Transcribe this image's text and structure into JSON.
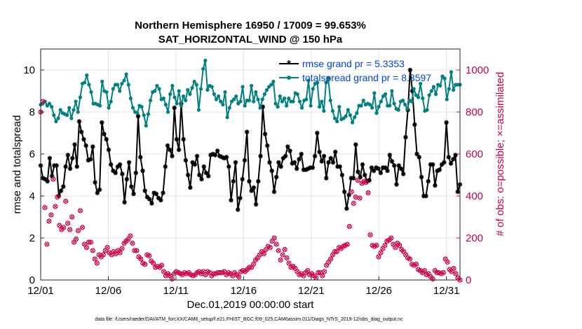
{
  "chart_data": {
    "type": "line",
    "title": "Northern Hemisphere 16950 / 17009 = 99.653%",
    "subtitle": "SAT_HORIZONTAL_WIND @ 150 hPa",
    "xlabel": "Dec.01,2019 00:00:00 start",
    "ylabel_left": "rmse and totalspread",
    "ylabel_right": "# of obs: o=possible; ×=assimilated",
    "xlim": [
      0,
      31
    ],
    "ylim_left": [
      0,
      11
    ],
    "ylim_right": [
      0,
      1100
    ],
    "x_ticks": [
      0,
      5,
      10,
      15,
      20,
      25,
      30
    ],
    "x_tick_labels": [
      "12/01",
      "12/06",
      "12/11",
      "12/16",
      "12/21",
      "12/26",
      "12/31"
    ],
    "y_left_ticks": [
      "0",
      "2",
      "4",
      "6",
      "8",
      "10"
    ],
    "y_right_ticks": [
      "0",
      "200",
      "400",
      "600",
      "800",
      "1000"
    ],
    "grid": true,
    "legend_position": "top-right",
    "footer": "data file: /Users/raeder/DAI/ATM_forcXX/CAM6_setup/f.e21.FHIST_BGC.f09_025.CAM6assim.011/Diags_NTrS_2019-12/obs_diag_output.nc",
    "series": [
      {
        "name": "rmse grand pr = 5.3353",
        "axis": "left",
        "color": "#000000",
        "values": [
          5.45,
          4.85,
          4.8,
          4.7,
          5.8,
          4.95,
          5.45,
          5.45,
          4.0,
          4.25,
          4.45,
          5.4,
          5.95,
          5.3,
          5.8,
          6.45,
          5.4,
          7.55,
          7.05,
          6.7,
          6.4,
          5.7,
          5.75,
          6.35,
          4.65,
          4.15,
          4.3,
          7.5,
          6.95,
          6.7,
          6.2,
          5.5,
          5.2,
          5.1,
          5.4,
          5.5,
          5.05,
          3.7,
          4.8,
          5.6,
          4.45,
          4.1,
          5.1,
          7.8,
          5.85,
          5.2,
          4.25,
          3.95,
          3.85,
          3.65,
          4.15,
          4.1,
          3.9,
          3.8,
          4.15,
          5.4,
          6.4,
          6.2,
          5.9,
          8.2,
          6.7,
          6.2,
          8.4,
          6.7,
          5.7,
          5.0,
          4.4,
          5.6,
          5.5,
          5.9,
          5.0,
          4.8,
          5.4,
          5.1,
          4.95,
          5.95,
          6.0,
          5.95,
          6.15,
          5.9,
          5.85,
          5.8,
          5.85,
          5.4,
          3.8,
          4.7,
          5.6,
          3.35,
          3.9,
          4.8,
          5.7,
          7.05,
          4.7,
          4.25,
          4.4,
          3.6,
          4.7,
          5.9,
          8.25,
          6.95,
          6.4,
          5.6,
          5.2,
          4.2,
          4.9,
          5.6,
          5.4,
          5.8,
          5.9,
          6.35,
          6.15,
          5.55,
          5.6,
          5.3,
          5.75,
          6.0,
          5.25,
          5.25,
          5.3,
          5.35,
          5.35,
          5.9,
          7.0,
          6.1,
          5.65,
          5.9,
          4.85,
          5.6,
          5.8,
          5.6,
          6.1,
          5.4,
          5.4,
          5.0,
          4.2,
          3.4,
          4.05,
          4.85,
          4.85,
          6.45,
          5.15,
          4.9,
          5.5,
          5.0,
          4.7,
          4.75,
          5.35,
          5.2,
          5.35,
          5.3,
          5.1,
          5.35,
          5.35,
          5.2,
          5.95,
          5.65,
          5.45,
          4.55,
          5.45,
          5.3,
          5.05,
          6.8,
          8.1,
          10.0,
          9.0,
          7.4,
          6.0,
          5.85,
          4.9,
          4.0,
          4.0,
          4.7,
          5.5,
          5.5,
          4.5,
          5.2,
          5.25,
          5.5,
          5.6,
          7.5,
          5.85,
          5.55,
          5.75,
          5.95,
          4.2,
          4.55
        ],
        "markers": "asterisk"
      },
      {
        "name": "totalspread grand pr = 8.3597",
        "axis": "left",
        "color": "#008080",
        "values": [
          8.35,
          8.4,
          8.5,
          8.3,
          8.4,
          8.25,
          7.85,
          7.55,
          7.7,
          8.1,
          7.95,
          7.9,
          7.85,
          8.2,
          7.7,
          8.1,
          8.5,
          8.0,
          8.7,
          9.35,
          9.4,
          9.75,
          9.3,
          8.95,
          8.4,
          8.4,
          8.35,
          8.3,
          9.45,
          9.0,
          8.95,
          8.2,
          8.5,
          9.1,
          9.3,
          9.3,
          9.0,
          9.35,
          9.5,
          9.8,
          9.3,
          8.65,
          8.2,
          8.0,
          7.95,
          8.3,
          8.25,
          7.85,
          7.35,
          7.9,
          8.55,
          8.95,
          9.0,
          9.25,
          9.1,
          8.6,
          8.65,
          8.35,
          8.0,
          8.85,
          9.25,
          8.7,
          8.4,
          9.0,
          8.3,
          8.75,
          8.55,
          9.05,
          8.85,
          9.15,
          9.45,
          9.3,
          8.1,
          9.1,
          10.05,
          10.45,
          9.05,
          9.25,
          9.2,
          8.85,
          8.6,
          8.75,
          8.5,
          8.35,
          8.95,
          7.75,
          8.2,
          8.5,
          8.6,
          8.75,
          8.4,
          8.5,
          9.2,
          8.3,
          8.55,
          8.55,
          9.25,
          8.5,
          8.95,
          8.6,
          8.2,
          8.6,
          8.85,
          9.05,
          9.2,
          9.3,
          9.45,
          8.4,
          8.25,
          8.75,
          8.5,
          8.65,
          8.3,
          8.65,
          8.5,
          8.5,
          8.9,
          8.85,
          8.5,
          8.2,
          8.55,
          8.6,
          9.5,
          8.3,
          9.1,
          9.35,
          9.4,
          8.25,
          8.5,
          8.05,
          9.4,
          9.6,
          8.55,
          8.05,
          7.7,
          7.55,
          8.25,
          7.65,
          7.7,
          7.8,
          8.1,
          7.85,
          7.5,
          7.75,
          7.95,
          8.3,
          8.3,
          8.55,
          8.35,
          8.4,
          8.35,
          8.2,
          8.9,
          7.95,
          8.25,
          8.5,
          8.75,
          8.85,
          8.3,
          8.3,
          9.0,
          8.4,
          8.15,
          8.1,
          8.5,
          8.55,
          8.35,
          8.15,
          8.55,
          8.5,
          9.1,
          8.8,
          8.7,
          9.35,
          8.65,
          8.05,
          8.1,
          8.8,
          9.0,
          9.2,
          8.85,
          9.3,
          9.25,
          9.7,
          9.6,
          8.6,
          9.1,
          9.9,
          9.05,
          9.3,
          9.3,
          9.3
        ],
        "markers": "dot"
      },
      {
        "name": "",
        "axis": "right",
        "color": "#cc0044",
        "values": [
          800,
          850,
          345,
          170,
          280,
          310,
          480,
          350,
          395,
          260,
          240,
          250,
          375,
          270,
          240,
          300,
          180,
          195,
          235,
          330,
          250,
          170,
          155,
          180,
          180,
          140,
          100,
          80,
          120,
          110,
          120,
          140,
          155,
          130,
          120,
          135,
          125,
          140,
          130,
          150,
          175,
          185,
          195,
          210,
          175,
          140,
          140,
          110,
          100,
          80,
          75,
          120,
          115,
          90,
          80,
          60,
          65,
          60,
          70,
          40,
          20,
          30,
          20,
          5,
          30,
          40,
          35,
          30,
          25,
          35,
          30,
          35,
          25,
          20,
          25,
          35,
          40,
          30,
          40,
          25,
          40,
          35,
          20,
          30,
          30,
          35,
          35,
          35,
          40,
          25,
          35,
          30,
          20,
          35,
          25,
          15,
          40,
          45,
          40,
          50,
          60,
          60,
          75,
          95,
          105,
          120,
          135,
          125,
          145,
          160,
          155,
          185,
          200,
          170,
          140,
          95,
          120,
          145,
          105,
          80,
          60,
          65,
          55,
          40,
          25,
          30,
          20,
          35,
          45,
          25,
          30,
          20,
          10,
          35,
          35,
          20,
          40,
          70,
          85,
          100,
          120,
          135,
          135,
          155,
          150,
          160,
          165,
          170,
          255,
          420,
          365,
          395,
          475,
          390,
          460,
          470,
          465,
          415,
          215,
          165,
          160,
          165,
          110,
          130,
          150,
          165,
          185,
          190,
          200,
          170,
          155,
          175,
          165,
          145,
          135,
          120,
          105,
          100,
          75,
          70,
          75,
          50,
          45,
          35,
          45,
          25,
          30,
          15,
          5,
          45,
          35,
          35,
          30,
          35,
          100,
          85,
          50,
          40,
          55,
          30,
          10,
          0
        ],
        "markers": "circle-x"
      }
    ]
  }
}
